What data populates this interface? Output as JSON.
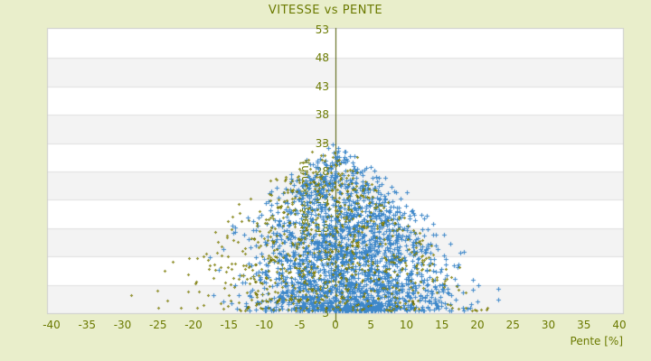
{
  "page": {
    "background_color": "#e9eecb",
    "text_color": "#6b7a00"
  },
  "chart_data": {
    "type": "scatter",
    "title": "VITESSE vs PENTE",
    "xlabel": "Pente [%]",
    "ylabel": "Vitesse [km/h]",
    "xlim": [
      -40,
      40
    ],
    "ylim": [
      3,
      53
    ],
    "xticks": [
      -40,
      -35,
      -30,
      -25,
      -20,
      -15,
      -10,
      -5,
      0,
      5,
      10,
      15,
      20,
      25,
      30,
      35,
      40
    ],
    "yticks": [
      3,
      8,
      13,
      18,
      23,
      28,
      33,
      38,
      43,
      48,
      53
    ],
    "legend": "none",
    "grid": "horizontal-bands",
    "plot_bg_color": "#ffffff",
    "band_color": "#f3f3f3",
    "gridline_color": "#e0e0e0",
    "plot_border_color": "#cdcdcd",
    "zero_axis_color": "#4e5a00",
    "seed": 42,
    "series": [
      {
        "name": "dense-blue-cloud",
        "marker": "plus",
        "marker_size_px": 5,
        "color": "#3d87c9",
        "count": 2300,
        "distribution": {
          "shape": "triangular-envelope",
          "x_mean": 1.5,
          "x_sigma": 6.3,
          "x_min": -21,
          "x_max": 23.5,
          "envelope_peak": 31.5,
          "slope_left": 0.85,
          "slope_right": 0.95,
          "envelope_jitter": 2.5,
          "y_floor": 3.4,
          "y_power": 1.5
        },
        "outliers": []
      },
      {
        "name": "sparse-olive-fringe",
        "marker": "diamond",
        "marker_size_px": 3,
        "color": "#6b6b00",
        "center_color": "#b9b931",
        "count": 820,
        "distribution": {
          "shape": "triangular-envelope",
          "x_mean": -1.5,
          "x_sigma": 8.8,
          "x_min": -26,
          "x_max": 21.5,
          "envelope_peak": 33,
          "slope_left": 0.9,
          "slope_right": 1.35,
          "envelope_jitter": 2.5,
          "y_floor": 3.4,
          "y_power": 1.15
        },
        "outliers": [
          [
            -28.8,
            6.2
          ]
        ]
      }
    ]
  }
}
